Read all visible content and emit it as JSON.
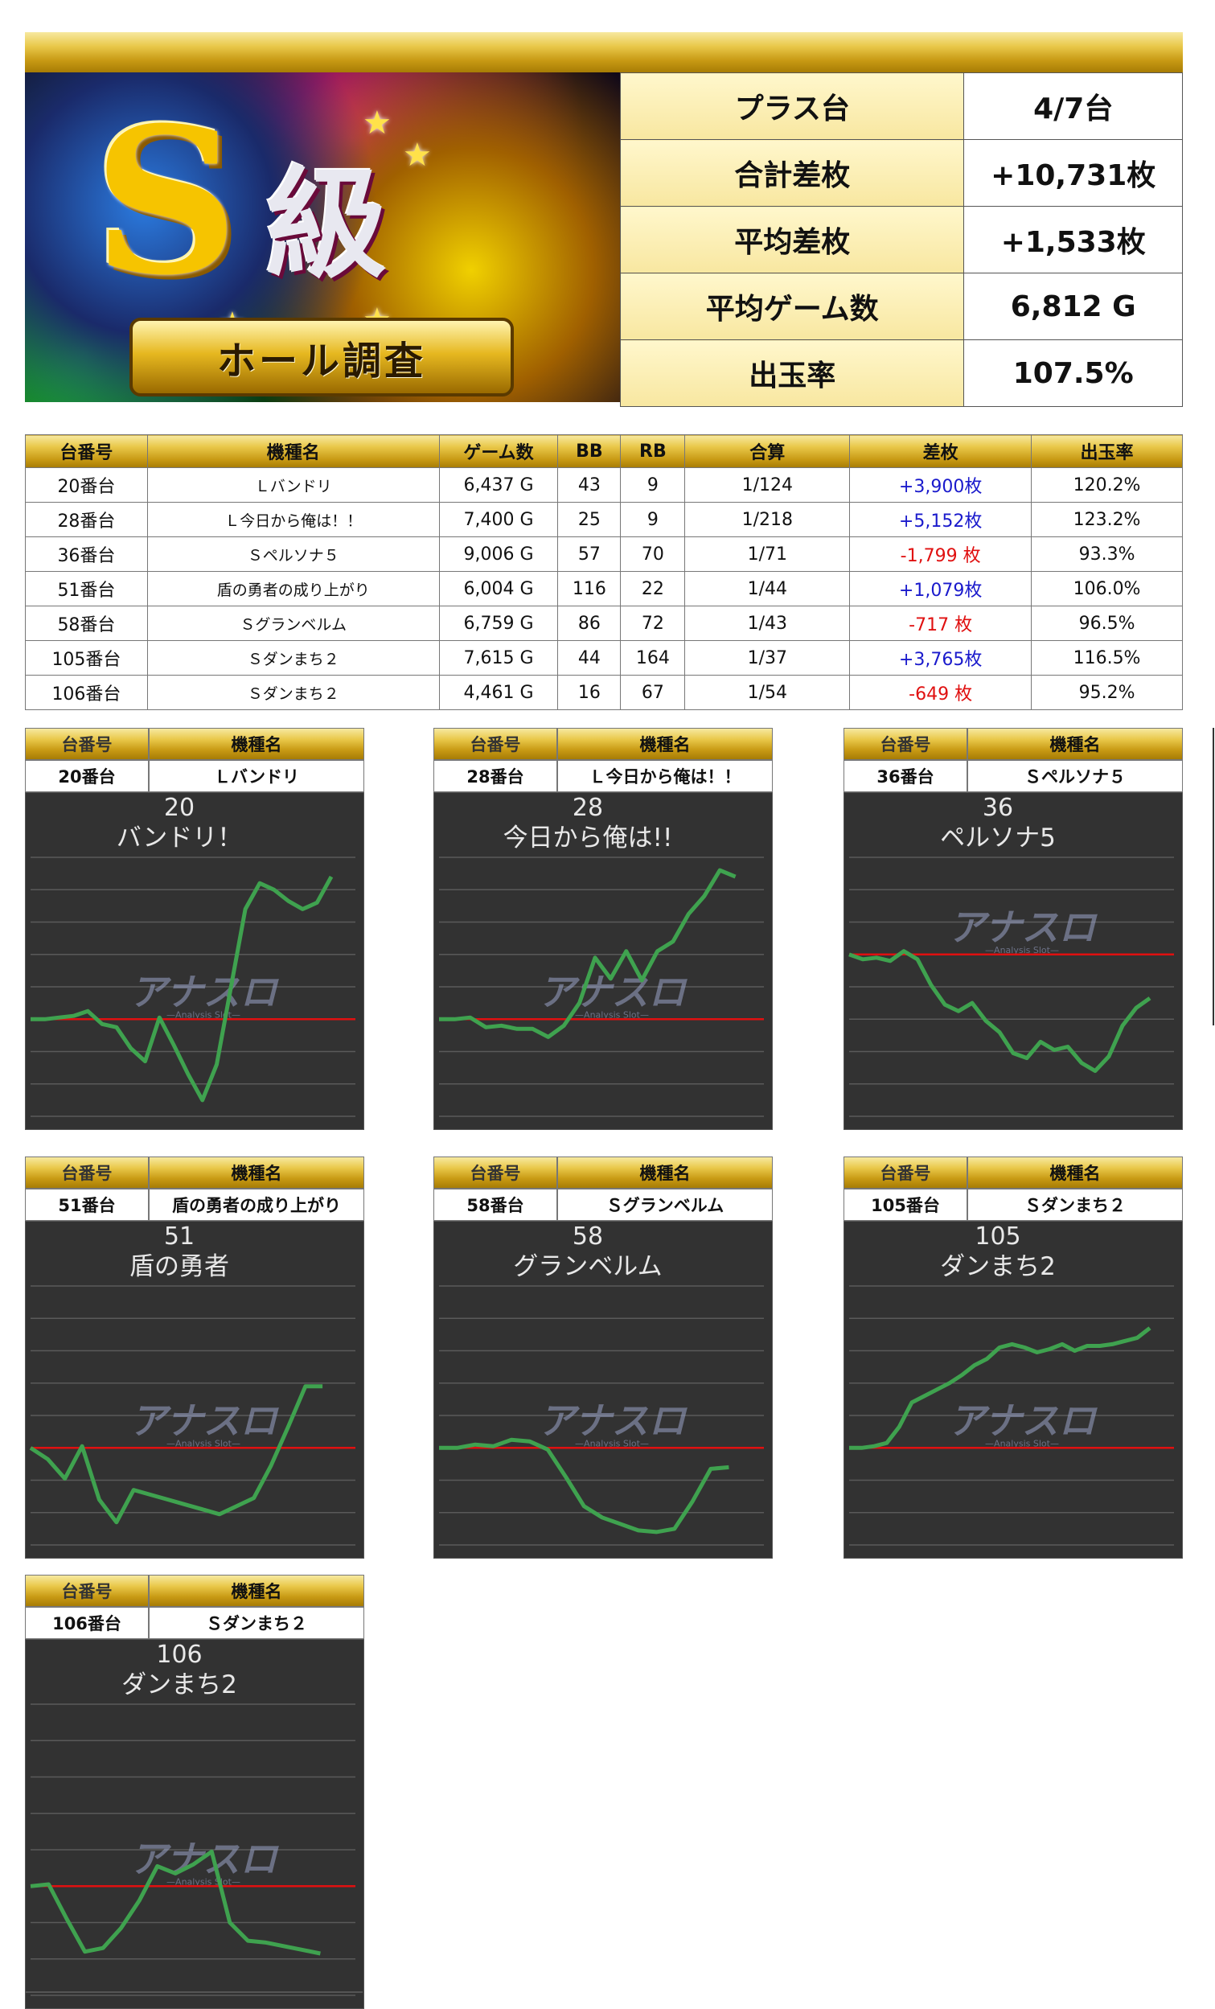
{
  "summary": {
    "rows": [
      {
        "label": "プラス台",
        "value": "4/7台"
      },
      {
        "label": "合計差枚",
        "value": "+10,731枚"
      },
      {
        "label": "平均差枚",
        "value": "+1,533枚"
      },
      {
        "label": "平均ゲーム数",
        "value": "6,812 G"
      },
      {
        "label": "出玉率",
        "value": "107.5%"
      }
    ]
  },
  "banner": {
    "big_letter": "S",
    "grade": "級",
    "ribbon": "ホール調査"
  },
  "table": {
    "headers": [
      "台番号",
      "機種名",
      "ゲーム数",
      "BB",
      "RB",
      "合算",
      "差枚",
      "出玉率"
    ],
    "rows": [
      {
        "no": "20番台",
        "name": "Ｌバンドリ",
        "games": "6,437 G",
        "bb": "43",
        "rb": "9",
        "combined": "1/124",
        "diff": "+3,900枚",
        "sign": "plus",
        "rate": "120.2%"
      },
      {
        "no": "28番台",
        "name": "Ｌ今日から俺は！！",
        "games": "7,400 G",
        "bb": "25",
        "rb": "9",
        "combined": "1/218",
        "diff": "+5,152枚",
        "sign": "plus",
        "rate": "123.2%"
      },
      {
        "no": "36番台",
        "name": "Ｓペルソナ５",
        "games": "9,006 G",
        "bb": "57",
        "rb": "70",
        "combined": "1/71",
        "diff": "-1,799 枚",
        "sign": "minus",
        "rate": "93.3%"
      },
      {
        "no": "51番台",
        "name": "盾の勇者の成り上がり",
        "games": "6,004 G",
        "bb": "116",
        "rb": "22",
        "combined": "1/44",
        "diff": "+1,079枚",
        "sign": "plus",
        "rate": "106.0%"
      },
      {
        "no": "58番台",
        "name": "Ｓグランベルム",
        "games": "6,759 G",
        "bb": "86",
        "rb": "72",
        "combined": "1/43",
        "diff": "-717 枚",
        "sign": "minus",
        "rate": "96.5%"
      },
      {
        "no": "105番台",
        "name": "Ｓダンまち２",
        "games": "7,615 G",
        "bb": "44",
        "rb": "164",
        "combined": "1/37",
        "diff": "+3,765枚",
        "sign": "plus",
        "rate": "116.5%"
      },
      {
        "no": "106番台",
        "name": "Ｓダンまち２",
        "games": "4,461 G",
        "bb": "16",
        "rb": "67",
        "combined": "1/54",
        "diff": "-649 枚",
        "sign": "minus",
        "rate": "95.2%"
      }
    ]
  },
  "card_headers": {
    "no": "台番号",
    "name": "機種名"
  },
  "watermark": "アナスロ",
  "watermark_sub": "—Analysis Slot—",
  "chart_data": [
    {
      "type": "line",
      "title": "20",
      "subtitle": "バンドリ！",
      "machine_no": "20番台",
      "machine_name": "Ｌバンドリ",
      "ylim": [
        -6,
        10
      ],
      "y": [
        0,
        0,
        0.1,
        0.2,
        0.5,
        -0.3,
        -0.5,
        -1.8,
        -2.6,
        0.1,
        -1.6,
        -3.4,
        -5.0,
        -2.8,
        2.0,
        6.8,
        8.4,
        8.0,
        7.3,
        6.8,
        7.2,
        8.8
      ]
    },
    {
      "type": "line",
      "title": "28",
      "subtitle": "今日から俺は!!",
      "machine_no": "28番台",
      "machine_name": "Ｌ今日から俺は！！",
      "ylim": [
        -6,
        10
      ],
      "y": [
        0,
        0,
        0.1,
        -0.5,
        -0.4,
        -0.6,
        -0.6,
        -1.1,
        -0.4,
        1.0,
        3.8,
        2.5,
        4.2,
        2.4,
        4.2,
        4.8,
        6.5,
        7.6,
        9.2,
        8.8
      ]
    },
    {
      "type": "line",
      "title": "36",
      "subtitle": "ペルソナ5",
      "machine_no": "36番台",
      "machine_name": "Ｓペルソナ５",
      "ylim": [
        -10,
        6
      ],
      "y": [
        0,
        -0.3,
        -0.2,
        -0.4,
        0.2,
        -0.3,
        -1.9,
        -3.1,
        -3.5,
        -3.0,
        -4.1,
        -4.8,
        -6.1,
        -6.4,
        -5.4,
        -5.9,
        -5.7,
        -6.7,
        -7.2,
        -6.3,
        -4.4,
        -3.3,
        -2.7
      ]
    },
    {
      "type": "line",
      "title": "51",
      "subtitle": "盾の勇者",
      "machine_no": "51番台",
      "machine_name": "盾の勇者の成り上がり",
      "ylim": [
        -6,
        10
      ],
      "y": [
        0,
        -0.7,
        -1.9,
        0.1,
        -3.2,
        -4.6,
        -2.6,
        -2.9,
        -3.2,
        -3.5,
        -3.8,
        -4.1,
        -3.6,
        -3.1,
        -1.1,
        1.3,
        3.8,
        3.8
      ]
    },
    {
      "type": "line",
      "title": "58",
      "subtitle": "グランベルム",
      "machine_no": "58番台",
      "machine_name": "Ｓグランベルム",
      "ylim": [
        -6,
        10
      ],
      "y": [
        0,
        0,
        0.2,
        0.1,
        0.5,
        0.4,
        -0.1,
        -1.8,
        -3.6,
        -4.3,
        -4.7,
        -5.1,
        -5.2,
        -5.0,
        -3.3,
        -1.3,
        -1.2
      ]
    },
    {
      "type": "line",
      "title": "105",
      "subtitle": "ダンまち2",
      "machine_no": "105番台",
      "machine_name": "Ｓダンまち２",
      "ylim": [
        -6,
        10
      ],
      "y": [
        0,
        0,
        0.1,
        0.3,
        1.3,
        2.8,
        3.2,
        3.6,
        4.0,
        4.5,
        5.1,
        5.5,
        6.2,
        6.4,
        6.2,
        5.9,
        6.1,
        6.4,
        6.0,
        6.3,
        6.3,
        6.4,
        6.6,
        6.8,
        7.4
      ]
    },
    {
      "type": "line",
      "title": "106",
      "subtitle": "ダンまち2",
      "machine_no": "106番台",
      "machine_name": "Ｓダンまち２",
      "ylim": [
        -6,
        10
      ],
      "y": [
        0,
        0.1,
        -1.8,
        -3.6,
        -3.4,
        -2.3,
        -0.8,
        1.1,
        0.7,
        1.2,
        1.9,
        -2.0,
        -3.0,
        -3.1,
        -3.3,
        -3.5,
        -3.7
      ]
    }
  ]
}
